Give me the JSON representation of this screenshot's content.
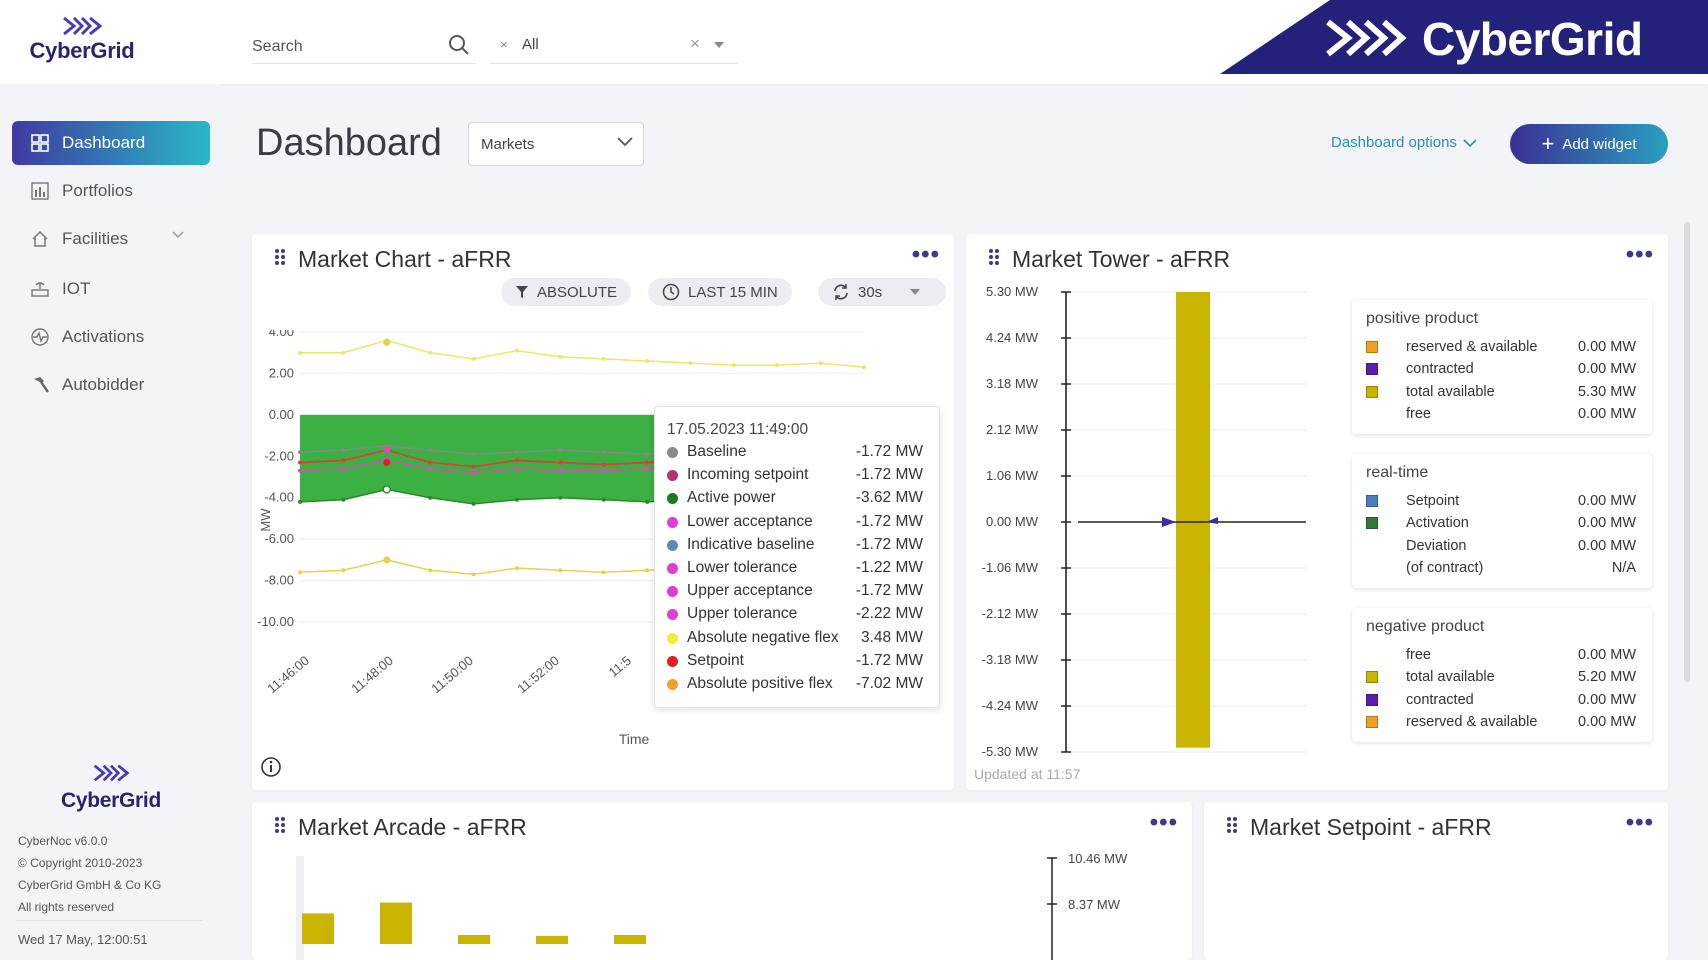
{
  "header": {
    "logo_text": "CyberGrid",
    "search_placeholder": "Search",
    "filter": {
      "chip_remove": "×",
      "value": "All",
      "clear": "×"
    },
    "brand_text": "CyberGrid"
  },
  "sidebar": {
    "items": [
      {
        "label": "Dashboard",
        "icon": "grid-icon",
        "active": true
      },
      {
        "label": "Portfolios",
        "icon": "bar-chart-icon"
      },
      {
        "label": "Facilities",
        "icon": "home-icon",
        "expandable": true
      },
      {
        "label": "IOT",
        "icon": "iot-icon"
      },
      {
        "label": "Activations",
        "icon": "activity-icon"
      },
      {
        "label": "Autobidder",
        "icon": "hammer-icon"
      }
    ],
    "footer_logo": "CyberGrid",
    "version": "CyberNoc v6.0.0",
    "copyright": "© Copyright 2010-2023",
    "company": "CyberGrid GmbH & Co KG",
    "rights": "All rights reserved",
    "datetime": "Wed 17 May, 12:00:51"
  },
  "page": {
    "title": "Dashboard",
    "selector_value": "Markets",
    "options_label": "Dashboard options",
    "add_widget_label": "Add widget"
  },
  "colors": {
    "accent": "#3b2f93",
    "teal": "#2ab8c8",
    "link": "#2a8fb0",
    "green_band": "#3cb043",
    "olive": "#c9b400"
  },
  "market_chart": {
    "title": "Market Chart - aFRR",
    "filter_label": "ABSOLUTE",
    "range_label": "LAST 15 MIN",
    "refresh_label": "30s",
    "chart_data": {
      "type": "line",
      "xlabel": "Time",
      "ylabel": "MW",
      "ylim": [
        -10,
        4
      ],
      "y_ticks": [
        "4.00",
        "2.00",
        "0.00",
        "-2.00",
        "-4.00",
        "-6.00",
        "-8.00",
        "-10.00"
      ],
      "x_ticks": [
        "11:46:00",
        "11:48:00",
        "11:50:00",
        "11:52:00",
        "11:5",
        "11:",
        "11:"
      ],
      "x": [
        0,
        1,
        2,
        3,
        4,
        5,
        6,
        7,
        8,
        9,
        10,
        11,
        12,
        13
      ],
      "series": [
        {
          "name": "Absolute negative flex",
          "color": "#e9e86a",
          "values": [
            3.0,
            3.0,
            3.6,
            3.0,
            2.7,
            3.1,
            2.8,
            2.7,
            2.6,
            2.5,
            2.4,
            2.4,
            2.5,
            2.3
          ]
        },
        {
          "name": "Baseline",
          "color": "#888888",
          "values": [
            -1.8,
            -1.7,
            -1.5,
            -1.7,
            -1.9,
            -1.8,
            -1.7,
            -1.8,
            -1.9,
            -1.8,
            -1.7,
            -1.8,
            -1.8,
            -1.7
          ]
        },
        {
          "name": "Setpoint",
          "color": "#e23b3b",
          "values": [
            -2.3,
            -2.2,
            -1.7,
            -2.3,
            -2.5,
            -2.2,
            -2.3,
            -2.4,
            -2.3,
            -2.2,
            -2.3,
            -2.4,
            -2.3,
            -2.2
          ]
        },
        {
          "name": "Upper tolerance",
          "color": "#d94bb8",
          "values": [
            -2.7,
            -2.6,
            -2.2,
            -2.6,
            -2.8,
            -2.6,
            -2.7,
            -2.7,
            -2.6,
            -2.6,
            -2.7,
            -2.7,
            -2.6,
            -2.6
          ]
        },
        {
          "name": "Active power",
          "color": "#2a8a2a",
          "values": [
            -4.2,
            -4.1,
            -3.6,
            -4.0,
            -4.3,
            -4.1,
            -4.0,
            -4.1,
            -4.2,
            -4.1,
            -4.0,
            -4.1,
            -4.2,
            -4.1
          ]
        },
        {
          "name": "Absolute positive flex",
          "color": "#e6d24a",
          "values": [
            -7.6,
            -7.5,
            -7.0,
            -7.5,
            -7.7,
            -7.4,
            -7.5,
            -7.6,
            -7.5,
            -7.4,
            -7.5,
            -7.6,
            -7.5,
            -7.4
          ]
        }
      ]
    },
    "tooltip": {
      "timestamp": "17.05.2023 11:49:00",
      "rows": [
        {
          "label": "Baseline",
          "value": "-1.72 MW",
          "color": "#8a8a8a"
        },
        {
          "label": "Incoming setpoint",
          "value": "-1.72 MW",
          "color": "#b8336a"
        },
        {
          "label": "Active power",
          "value": "-3.62 MW",
          "color": "#1f7a1f"
        },
        {
          "label": "Lower acceptance",
          "value": "-1.72 MW",
          "color": "#e03ed0"
        },
        {
          "label": "Indicative baseline",
          "value": "-1.72 MW",
          "color": "#5a8bb5"
        },
        {
          "label": "Lower tolerance",
          "value": "-1.22 MW",
          "color": "#e03ed0"
        },
        {
          "label": "Upper acceptance",
          "value": "-1.72 MW",
          "color": "#e03ed0"
        },
        {
          "label": "Upper tolerance",
          "value": "-2.22 MW",
          "color": "#e03ed0"
        },
        {
          "label": "Absolute negative flex",
          "value": "3.48 MW",
          "color": "#f0ee3a"
        },
        {
          "label": "Setpoint",
          "value": "-1.72 MW",
          "color": "#e02020"
        },
        {
          "label": "Absolute positive flex",
          "value": "-7.02 MW",
          "color": "#f0a030"
        }
      ]
    }
  },
  "market_tower": {
    "title": "Market Tower - aFRR",
    "updated": "Updated at 11:57",
    "chart_data": {
      "type": "bar",
      "ylim": [
        -5.3,
        5.3
      ],
      "y_ticks": [
        "5.30 MW",
        "4.24 MW",
        "3.18 MW",
        "2.12 MW",
        "1.06 MW",
        "0.00 MW",
        "-1.06 MW",
        "-2.12 MW",
        "-3.18 MW",
        "-4.24 MW",
        "-5.30 MW"
      ],
      "values": [
        5.3,
        -5.2
      ]
    },
    "positive_product": {
      "title": "positive product",
      "rows": [
        {
          "label": "reserved & available",
          "value": "0.00 MW",
          "color": "#f0a020"
        },
        {
          "label": "contracted",
          "value": "0.00 MW",
          "color": "#5a1fb0"
        },
        {
          "label": "total available",
          "value": "5.30 MW",
          "color": "#c9b400"
        },
        {
          "label": "free",
          "value": "0.00 MW",
          "color": ""
        }
      ]
    },
    "real_time": {
      "title": "real-time",
      "rows": [
        {
          "label": "Setpoint",
          "value": "0.00 MW",
          "color": "#4a7fc0"
        },
        {
          "label": "Activation",
          "value": "0.00 MW",
          "color": "#2f7a3a"
        },
        {
          "label": "Deviation",
          "value": "0.00 MW",
          "color": ""
        },
        {
          "label": "(of contract)",
          "value": "N/A",
          "color": ""
        }
      ]
    },
    "negative_product": {
      "title": "negative product",
      "rows": [
        {
          "label": "free",
          "value": "0.00 MW",
          "color": ""
        },
        {
          "label": "total available",
          "value": "5.20 MW",
          "color": "#c9b400"
        },
        {
          "label": "contracted",
          "value": "0.00 MW",
          "color": "#5a1fb0"
        },
        {
          "label": "reserved & available",
          "value": "0.00 MW",
          "color": "#f0a020"
        }
      ]
    }
  },
  "market_arcade": {
    "title": "Market Arcade - aFRR",
    "y_ticks": [
      "10.46 MW",
      "8.37 MW"
    ],
    "chart_data": {
      "type": "bar",
      "values": [
        3.4,
        4.6,
        1.0,
        0.9,
        1.0
      ]
    }
  },
  "market_setpoint": {
    "title": "Market Setpoint - aFRR"
  }
}
